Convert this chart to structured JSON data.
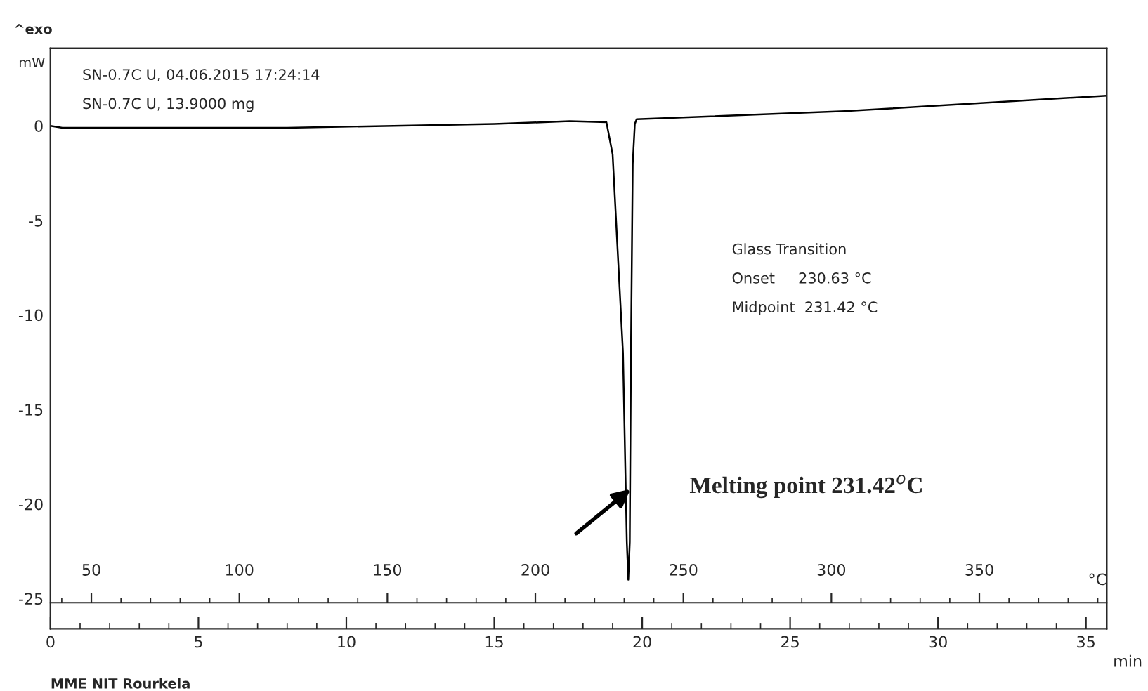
{
  "chart_data": {
    "type": "line",
    "xlabel": "min",
    "ylabel": "mW",
    "x2label": "°C",
    "x": [
      0,
      0.4,
      8,
      15,
      17.55,
      18.79,
      19.0,
      19.35,
      19.48,
      19.53,
      19.58,
      19.62,
      19.68,
      19.75,
      19.81,
      26.85,
      35.7
    ],
    "series": [
      {
        "color": "#000000",
        "values": [
          0,
          -0.1,
          -0.1,
          0.1,
          0.25,
          0.2,
          -1.5,
          -12,
          -22,
          -24,
          -22,
          -12,
          -2,
          0.1,
          0.35,
          0.78,
          1.6
        ]
      }
    ],
    "xlim": [
      0,
      35.7
    ],
    "xticks": [
      0,
      5,
      10,
      15,
      20,
      25,
      30,
      35
    ],
    "x2lim": [
      36.2,
      393
    ],
    "x2ticks": [
      50,
      100,
      150,
      200,
      250,
      300,
      350
    ],
    "ylim": [
      -26.6,
      4.1
    ],
    "yticks": [
      0,
      -5,
      {
        "value": -10,
        "label": "-10"
      },
      {
        "value": -15,
        "label": "-15"
      },
      {
        "value": -20,
        "label": "-20"
      },
      {
        "value": -25,
        "label": "-25"
      }
    ],
    "grid": false,
    "legend": false,
    "marker": "none",
    "line_style": "solid",
    "annotations": [
      "^exo",
      "SN-0.7C U, 04.06.2015 17:24:14",
      "SN-0.7C U, 13.9000 mg",
      "Glass Transition",
      "Onset     230.63 °C",
      "Midpoint  231.42 °C",
      "MME NIT Rourkela",
      "Melting point 231.42$^{o}$C"
    ]
  }
}
